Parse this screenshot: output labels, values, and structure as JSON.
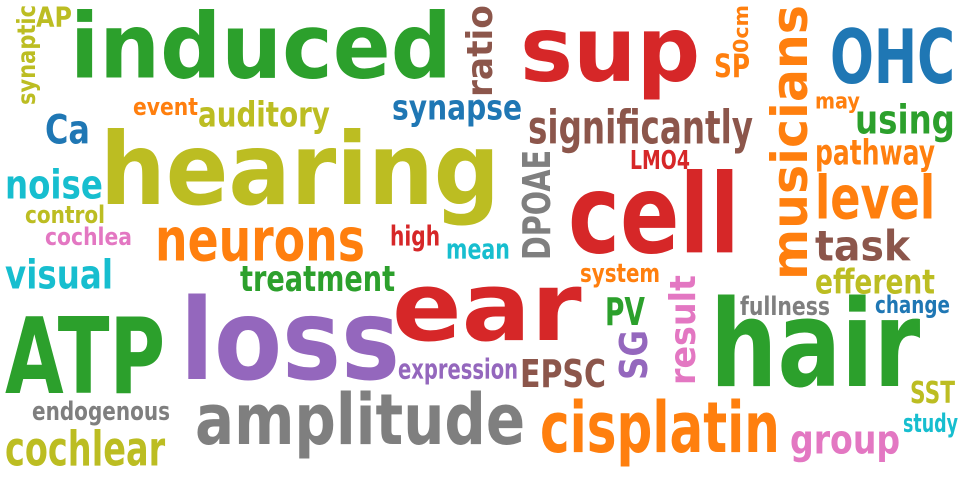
{
  "colors": {
    "green": "#2ca02c",
    "red": "#d62728",
    "blue": "#1f77b4",
    "olive": "#bcbd22",
    "orange": "#ff7f0e",
    "brown": "#8c564b",
    "purple": "#9467bd",
    "gray": "#7f7f7f",
    "pink": "#e377c2",
    "cyan": "#17becf"
  },
  "words": [
    {
      "text": "induced",
      "color": "green"
    },
    {
      "text": "hearing",
      "color": "olive"
    },
    {
      "text": "sup",
      "color": "red"
    },
    {
      "text": "cell",
      "color": "red"
    },
    {
      "text": "ear",
      "color": "red"
    },
    {
      "text": "loss",
      "color": "purple"
    },
    {
      "text": "ATP",
      "color": "green"
    },
    {
      "text": "hair",
      "color": "green"
    },
    {
      "text": "amplitude",
      "color": "gray"
    },
    {
      "text": "musicians",
      "color": "orange"
    },
    {
      "text": "OHC",
      "color": "blue"
    },
    {
      "text": "cisplatin",
      "color": "orange"
    },
    {
      "text": "neurons",
      "color": "orange"
    },
    {
      "text": "significantly",
      "color": "brown"
    },
    {
      "text": "level",
      "color": "orange"
    },
    {
      "text": "ratio",
      "color": "brown"
    },
    {
      "text": "using",
      "color": "green"
    },
    {
      "text": "task",
      "color": "brown"
    },
    {
      "text": "synapse",
      "color": "blue"
    },
    {
      "text": "auditory",
      "color": "olive"
    },
    {
      "text": "noise",
      "color": "cyan"
    },
    {
      "text": "visual",
      "color": "cyan"
    },
    {
      "text": "cochlear",
      "color": "olive"
    },
    {
      "text": "group",
      "color": "pink"
    },
    {
      "text": "treatment",
      "color": "green"
    },
    {
      "text": "pathway",
      "color": "orange"
    },
    {
      "text": "efferent",
      "color": "olive"
    },
    {
      "text": "Ca",
      "color": "blue"
    },
    {
      "text": "DPOAE",
      "color": "gray"
    },
    {
      "text": "result",
      "color": "pink"
    },
    {
      "text": "EPSC",
      "color": "brown"
    },
    {
      "text": "SG",
      "color": "purple"
    },
    {
      "text": "PV",
      "color": "green"
    },
    {
      "text": "expression",
      "color": "purple"
    },
    {
      "text": "endogenous",
      "color": "gray"
    },
    {
      "text": "fullness",
      "color": "gray"
    },
    {
      "text": "change",
      "color": "blue"
    },
    {
      "text": "system",
      "color": "orange"
    },
    {
      "text": "mean",
      "color": "cyan"
    },
    {
      "text": "high",
      "color": "red"
    },
    {
      "text": "cochlea",
      "color": "pink"
    },
    {
      "text": "control",
      "color": "olive"
    },
    {
      "text": "event",
      "color": "orange"
    },
    {
      "text": "synaptic",
      "color": "olive"
    },
    {
      "text": "AP",
      "color": "olive"
    },
    {
      "text": "SP",
      "color": "orange"
    },
    {
      "text": "0cm",
      "color": "orange"
    },
    {
      "text": "may",
      "color": "orange"
    },
    {
      "text": "LMO4",
      "color": "red"
    },
    {
      "text": "SST",
      "color": "olive"
    },
    {
      "text": "study",
      "color": "cyan"
    }
  ]
}
